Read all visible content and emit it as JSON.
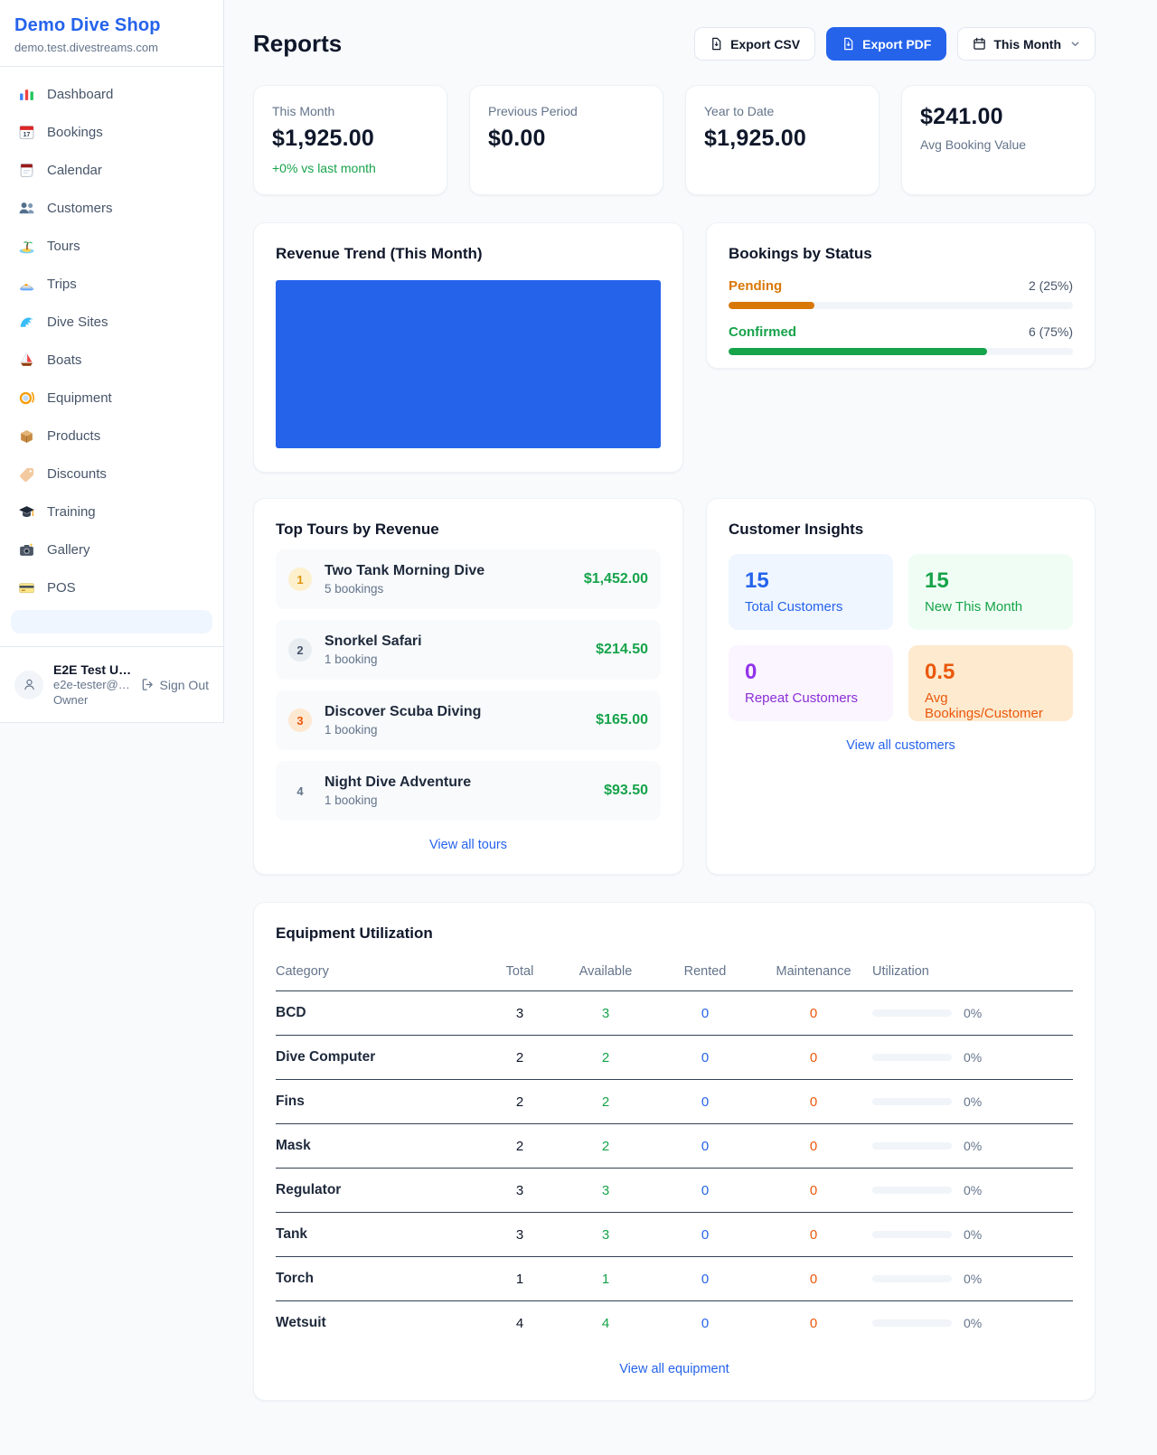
{
  "colors": {
    "accent": "#2563eb",
    "green": "#16a34a",
    "amber": "#d97706",
    "orange": "#ea580c",
    "purple": "#9333ea",
    "bg": "#f8fafc",
    "border": "#e2e8f0",
    "ink": "#0f172a",
    "muted": "#64748b"
  },
  "sidebar": {
    "brand": "Demo Dive Shop",
    "domain": "demo.test.divestreams.com",
    "items": [
      {
        "label": "Dashboard",
        "icon": "bar-chart"
      },
      {
        "label": "Bookings",
        "icon": "calendar-date"
      },
      {
        "label": "Calendar",
        "icon": "tear-off-calendar"
      },
      {
        "label": "Customers",
        "icon": "people"
      },
      {
        "label": "Tours",
        "icon": "island"
      },
      {
        "label": "Trips",
        "icon": "speedboat"
      },
      {
        "label": "Dive Sites",
        "icon": "wave"
      },
      {
        "label": "Boats",
        "icon": "sailboat"
      },
      {
        "label": "Equipment",
        "icon": "dive-mask"
      },
      {
        "label": "Products",
        "icon": "package"
      },
      {
        "label": "Discounts",
        "icon": "tag"
      },
      {
        "label": "Training",
        "icon": "graduation-cap"
      },
      {
        "label": "Gallery",
        "icon": "camera"
      },
      {
        "label": "POS",
        "icon": "credit-card"
      }
    ],
    "user": {
      "name": "E2E Test U…",
      "email": "e2e-tester@…",
      "role": "Owner",
      "sign_out": "Sign Out"
    }
  },
  "header": {
    "title": "Reports",
    "export_csv": "Export CSV",
    "export_pdf": "Export PDF",
    "period": "This Month"
  },
  "stats": [
    {
      "label": "This Month",
      "value": "$1,925.00",
      "delta": "+0% vs last month"
    },
    {
      "label": "Previous Period",
      "value": "$0.00"
    },
    {
      "label": "Year to Date",
      "value": "$1,925.00"
    },
    {
      "label": "Avg Booking Value",
      "value": "$241.00"
    }
  ],
  "revenue_trend": {
    "title": "Revenue Trend (This Month)"
  },
  "bookings_by_status": {
    "title": "Bookings by Status",
    "statuses": [
      {
        "label": "Pending",
        "count": "2 (25%)",
        "percent": 25
      },
      {
        "label": "Confirmed",
        "count": "6 (75%)",
        "percent": 75
      }
    ]
  },
  "top_tours": {
    "title": "Top Tours by Revenue",
    "items": [
      {
        "rank": "1",
        "name": "Two Tank Morning Dive",
        "bookings": "5 bookings",
        "revenue": "$1,452.00"
      },
      {
        "rank": "2",
        "name": "Snorkel Safari",
        "bookings": "1 booking",
        "revenue": "$214.50"
      },
      {
        "rank": "3",
        "name": "Discover Scuba Diving",
        "bookings": "1 booking",
        "revenue": "$165.00"
      },
      {
        "rank": "4",
        "name": "Night Dive Adventure",
        "bookings": "1 booking",
        "revenue": "$93.50"
      }
    ],
    "view_all": "View all tours"
  },
  "customer_insights": {
    "title": "Customer Insights",
    "tiles": [
      {
        "value": "15",
        "label": "Total Customers",
        "theme": "blue"
      },
      {
        "value": "15",
        "label": "New This Month",
        "theme": "green"
      },
      {
        "value": "0",
        "label": "Repeat Customers",
        "theme": "purple"
      },
      {
        "value": "0.5",
        "label": "Avg Bookings/Customer",
        "theme": "orange"
      }
    ],
    "view_all": "View all customers"
  },
  "equipment": {
    "title": "Equipment Utilization",
    "columns": [
      "Category",
      "Total",
      "Available",
      "Rented",
      "Maintenance",
      "Utilization"
    ],
    "rows": [
      {
        "category": "BCD",
        "total": "3",
        "available": "3",
        "rented": "0",
        "maintenance": "0",
        "utilization": "0%",
        "utilization_percent": 0
      },
      {
        "category": "Dive Computer",
        "total": "2",
        "available": "2",
        "rented": "0",
        "maintenance": "0",
        "utilization": "0%",
        "utilization_percent": 0
      },
      {
        "category": "Fins",
        "total": "2",
        "available": "2",
        "rented": "0",
        "maintenance": "0",
        "utilization": "0%",
        "utilization_percent": 0
      },
      {
        "category": "Mask",
        "total": "2",
        "available": "2",
        "rented": "0",
        "maintenance": "0",
        "utilization": "0%",
        "utilization_percent": 0
      },
      {
        "category": "Regulator",
        "total": "3",
        "available": "3",
        "rented": "0",
        "maintenance": "0",
        "utilization": "0%",
        "utilization_percent": 0
      },
      {
        "category": "Tank",
        "total": "3",
        "available": "3",
        "rented": "0",
        "maintenance": "0",
        "utilization": "0%",
        "utilization_percent": 0
      },
      {
        "category": "Torch",
        "total": "1",
        "available": "1",
        "rented": "0",
        "maintenance": "0",
        "utilization": "0%",
        "utilization_percent": 0
      },
      {
        "category": "Wetsuit",
        "total": "4",
        "available": "4",
        "rented": "0",
        "maintenance": "0",
        "utilization": "0%",
        "utilization_percent": 0
      }
    ],
    "view_all": "View all equipment"
  }
}
